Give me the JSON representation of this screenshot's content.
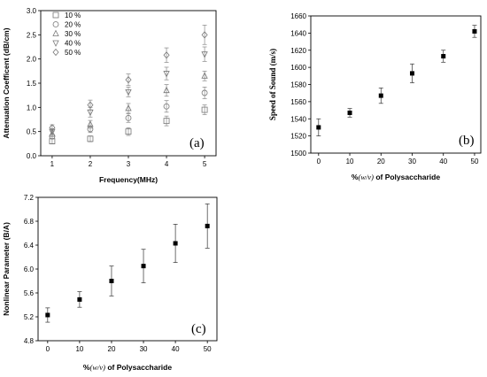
{
  "chart_data": [
    {
      "type": "scatter",
      "panel_label": "(a)",
      "xlabel": "Frequency(MHz)",
      "ylabel": "Attenuation Coefficent (dB/cm)",
      "xlim": [
        0.7,
        5.3
      ],
      "ylim": [
        0,
        3.0
      ],
      "xticks": [
        "1",
        "2",
        "3",
        "4",
        "5"
      ],
      "yticks": [
        "0.0",
        "0.5",
        "1.0",
        "1.5",
        "2.0",
        "2.5",
        "3.0"
      ],
      "legend_position": "top-left",
      "x": [
        1,
        2,
        3,
        4,
        5
      ],
      "series": [
        {
          "name": "10 %",
          "marker": "square",
          "values": [
            0.3,
            0.35,
            0.5,
            0.72,
            0.95
          ],
          "errors": [
            0.05,
            0.06,
            0.08,
            0.1,
            0.1
          ]
        },
        {
          "name": "20 %",
          "marker": "circle",
          "values": [
            0.4,
            0.55,
            0.78,
            1.02,
            1.3
          ],
          "errors": [
            0.05,
            0.07,
            0.09,
            0.12,
            0.12
          ]
        },
        {
          "name": "30 %",
          "marker": "triangle-up",
          "values": [
            0.45,
            0.65,
            0.98,
            1.35,
            1.65
          ],
          "errors": [
            0.05,
            0.08,
            0.1,
            0.12,
            0.1
          ]
        },
        {
          "name": "40 %",
          "marker": "triangle-down",
          "values": [
            0.5,
            0.9,
            1.32,
            1.7,
            2.1
          ],
          "errors": [
            0.06,
            0.1,
            0.1,
            0.13,
            0.15
          ]
        },
        {
          "name": "50 %",
          "marker": "diamond",
          "values": [
            0.58,
            1.05,
            1.57,
            2.08,
            2.5
          ],
          "errors": [
            0.06,
            0.1,
            0.12,
            0.15,
            0.2
          ]
        }
      ]
    },
    {
      "type": "scatter",
      "panel_label": "(b)",
      "xlabel_prefix": "%",
      "xlabel_italic": "(w/v)",
      "xlabel_suffix": " of Polysaccharide",
      "ylabel": "Speed of Sound (m/s)",
      "xlim": [
        -2.5,
        52
      ],
      "ylim": [
        1500,
        1660
      ],
      "xticks": [
        "0",
        "10",
        "20",
        "30",
        "40",
        "50"
      ],
      "yticks": [
        "1500",
        "1520",
        "1540",
        "1560",
        "1580",
        "1600",
        "1620",
        "1640",
        "1660"
      ],
      "x": [
        0,
        10,
        20,
        30,
        40,
        50
      ],
      "series": [
        {
          "marker": "filled-square",
          "values": [
            1530,
            1547,
            1567,
            1593,
            1613,
            1642
          ],
          "errors": [
            10,
            5,
            9,
            11,
            7,
            7
          ]
        }
      ]
    },
    {
      "type": "scatter",
      "panel_label": "(c)",
      "xlabel_prefix": "%",
      "xlabel_italic": "(w/v)",
      "xlabel_suffix": " of Polysaccharide",
      "ylabel": "Nonlinear Parameter (B/A)",
      "xlim": [
        -3,
        53
      ],
      "ylim": [
        4.8,
        7.2
      ],
      "xticks": [
        "0",
        "10",
        "20",
        "30",
        "40",
        "50"
      ],
      "yticks": [
        "4.8",
        "5.2",
        "5.6",
        "6.0",
        "6.4",
        "6.8",
        "7.2"
      ],
      "x": [
        0,
        10,
        20,
        30,
        40,
        50
      ],
      "series": [
        {
          "marker": "filled-square",
          "values": [
            5.23,
            5.49,
            5.8,
            6.05,
            6.43,
            6.72
          ],
          "errors": [
            0.12,
            0.13,
            0.25,
            0.28,
            0.32,
            0.37
          ]
        }
      ]
    }
  ]
}
